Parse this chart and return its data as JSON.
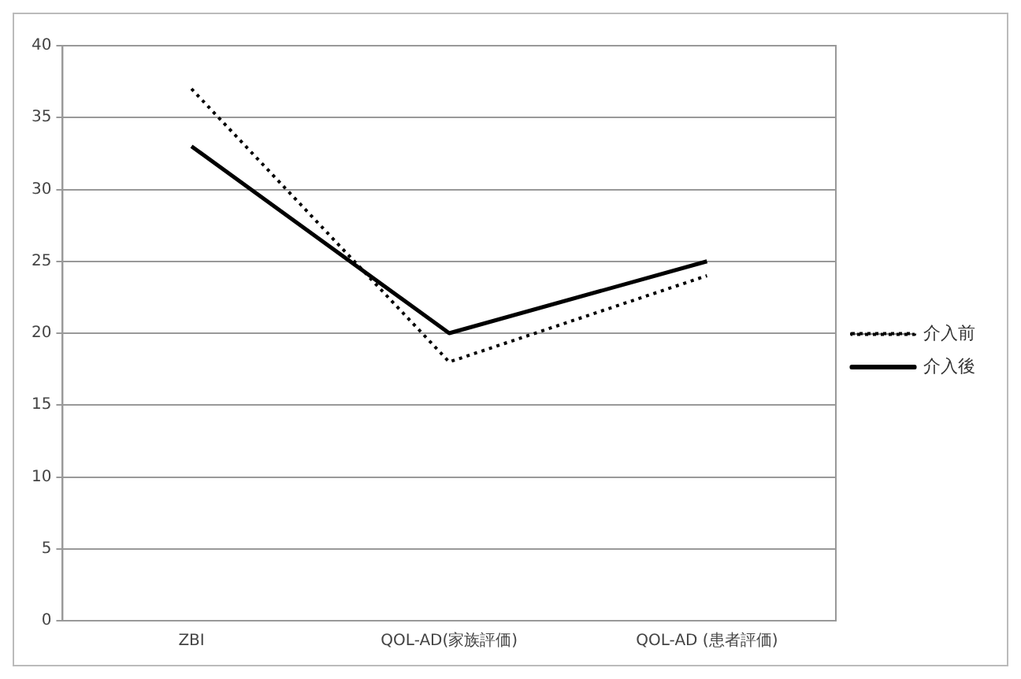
{
  "chart_data": {
    "type": "line",
    "categories": [
      "ZBI",
      "QOL-AD(家族評価)",
      "QOL-AD (患者評価)"
    ],
    "series": [
      {
        "name": "介入前",
        "color": "#000000",
        "values": [
          37,
          18,
          24
        ],
        "line_style": "dotted"
      },
      {
        "name": "介入後",
        "color": "#000000",
        "values": [
          33,
          20,
          25
        ],
        "line_style": "solid"
      }
    ],
    "ylim": [
      0,
      40
    ],
    "yticks": [
      0,
      5,
      10,
      15,
      20,
      25,
      30,
      35,
      40
    ],
    "grid": "y",
    "legend": "right",
    "marker": "none"
  }
}
